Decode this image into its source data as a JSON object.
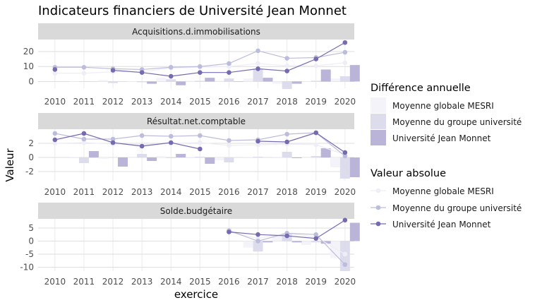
{
  "chart_data": {
    "type": "line",
    "title": "Indicateurs financiers de Université Jean Monnet",
    "xlabel": "exercice",
    "ylabel": "Valeur",
    "x": [
      2010,
      2011,
      2012,
      2013,
      2014,
      2015,
      2016,
      2017,
      2018,
      2019,
      2020
    ],
    "grid": true,
    "legend_position": "right",
    "legend_bar_title": "Différence annuelle",
    "legend_line_title": "Valeur absolue",
    "series_names": [
      "Moyenne globale MESRI",
      "Moyenne du groupe université",
      "Université Jean Monnet"
    ],
    "colors": [
      "#efedf5",
      "#bcbddc",
      "#756bb1"
    ],
    "bar_colors": [
      "#f4f3f9",
      "#dcdcec",
      "#bab5d8"
    ],
    "panels": [
      {
        "title": "Acquisitions.d.immobilisations",
        "ylim": [
          -4.5,
          28
        ],
        "yticks": [
          0,
          10,
          20
        ],
        "lines": [
          [
            5.5,
            5.5,
            6.5,
            6.5,
            9.0,
            9.5,
            10.0,
            12.0,
            10.5,
            10.5,
            12.5
          ],
          [
            9.5,
            9.5,
            8.5,
            8.0,
            9.5,
            10.0,
            12.0,
            20.5,
            15.5,
            16.0,
            19.5
          ],
          [
            8.0,
            null,
            7.5,
            6.0,
            3.5,
            6.0,
            6.0,
            8.5,
            7.0,
            15.0,
            26.0
          ]
        ],
        "bars": [
          [
            null,
            0.0,
            1.0,
            0.0,
            2.5,
            0.5,
            0.5,
            2.0,
            -1.5,
            0.0,
            2.0
          ],
          [
            null,
            0.0,
            -1.0,
            -0.5,
            1.5,
            0.5,
            2.0,
            8.5,
            -5.0,
            0.5,
            3.5
          ],
          [
            null,
            null,
            null,
            -1.5,
            -2.5,
            2.5,
            0.0,
            2.5,
            -1.5,
            8.0,
            11.0
          ]
        ]
      },
      {
        "title": "Résultat.net.comptable",
        "ylim": [
          -3.3,
          4.0
        ],
        "yticks": [
          -2,
          0,
          2
        ],
        "lines": [
          [
            2.0,
            2.1,
            1.9,
            1.8,
            2.0,
            2.1,
            1.7,
            1.8,
            1.9,
            1.8,
            0.4
          ],
          [
            3.4,
            2.6,
            2.6,
            3.1,
            3.0,
            3.1,
            2.4,
            2.5,
            3.3,
            3.5,
            0.2
          ],
          [
            2.5,
            3.4,
            2.1,
            1.6,
            2.1,
            1.2,
            null,
            2.3,
            2.2,
            3.5,
            0.7
          ]
        ],
        "bars": [
          [
            null,
            0.1,
            -0.2,
            -0.1,
            0.2,
            0.1,
            -0.4,
            0.1,
            0.1,
            -0.1,
            -1.4
          ],
          [
            null,
            -0.8,
            0.0,
            0.5,
            -0.1,
            0.1,
            -0.7,
            0.1,
            0.8,
            0.2,
            -3.0
          ],
          [
            null,
            0.9,
            -1.3,
            -0.5,
            0.5,
            -0.9,
            null,
            null,
            -0.1,
            1.3,
            -2.8
          ]
        ]
      },
      {
        "title": "Solde.budgétaire",
        "ylim": [
          -11.5,
          8.5
        ],
        "yticks": [
          -10,
          -5,
          0,
          5
        ],
        "lines": [
          [
            null,
            null,
            null,
            null,
            null,
            null,
            3.5,
            1.0,
            3.0,
            1.5,
            -5.0
          ],
          [
            null,
            null,
            null,
            null,
            null,
            null,
            4.0,
            0.0,
            3.0,
            2.5,
            -9.0
          ],
          [
            null,
            null,
            null,
            null,
            null,
            null,
            3.5,
            2.5,
            2.0,
            1.0,
            8.0
          ]
        ],
        "bars": [
          [
            null,
            null,
            null,
            null,
            null,
            null,
            null,
            -2.5,
            2.0,
            -1.5,
            -6.5
          ],
          [
            null,
            null,
            null,
            null,
            null,
            null,
            null,
            -4.0,
            3.0,
            -0.5,
            -11.5
          ],
          [
            null,
            null,
            null,
            null,
            null,
            null,
            null,
            -0.5,
            -0.5,
            -1.0,
            7.0
          ]
        ]
      }
    ]
  }
}
